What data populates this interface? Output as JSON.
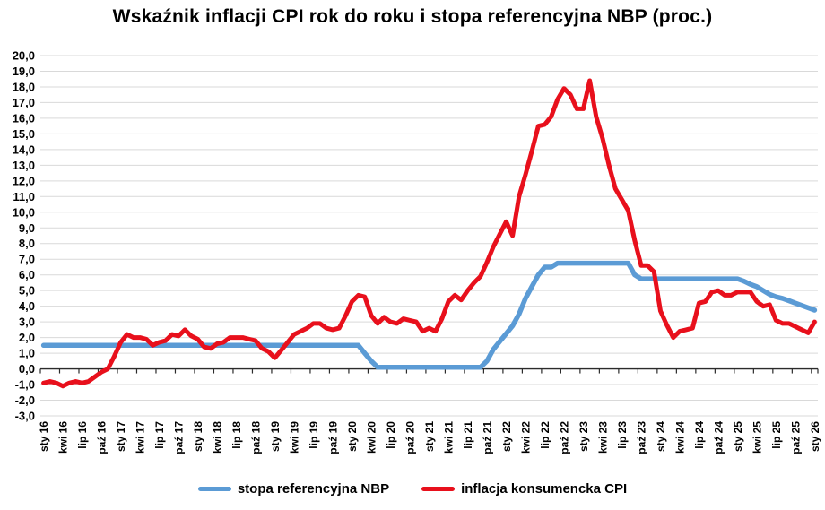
{
  "title": "Wskaźnik inflacji CPI rok do roku i stopa referencyjna NBP (proc.)",
  "legend": [
    {
      "label": "stopa referencyjna NBP",
      "color": "#5b9bd5"
    },
    {
      "label": "inflacja konsumencka CPI",
      "color": "#e8101c"
    }
  ],
  "chart_data": {
    "type": "line",
    "title": "Wskaźnik inflacji CPI rok do roku i stopa referencyjna NBP (proc.)",
    "frequency": "monthly",
    "x_start": "sty 16",
    "x_end": "sty 26",
    "ylim": [
      -3.0,
      20.0
    ],
    "y_tick_step": 1.0,
    "grid": "horizontal",
    "grid_color": "#d9d9d9",
    "axis_color": "#2b2b2b",
    "legend_position": "bottom",
    "y_tick_labels": [
      "20,0",
      "19,0",
      "18,0",
      "17,0",
      "16,0",
      "15,0",
      "14,0",
      "13,0",
      "12,0",
      "11,0",
      "10,0",
      "9,0",
      "8,0",
      "7,0",
      "6,0",
      "5,0",
      "4,0",
      "3,0",
      "2,0",
      "1,0",
      "0,0",
      "-1,0",
      "-2,0",
      "-3,0"
    ],
    "x_tick_labels": [
      "sty 16",
      "kwi 16",
      "lip 16",
      "paź 16",
      "sty 17",
      "kwi 17",
      "lip 17",
      "paź 17",
      "sty 18",
      "kwi 18",
      "lip 18",
      "paź 18",
      "sty 19",
      "kwi 19",
      "lip 19",
      "paź 19",
      "sty 20",
      "kwi 20",
      "lip 20",
      "paź 20",
      "sty 21",
      "kwi 21",
      "lip 21",
      "paź 21",
      "sty 22",
      "kwi 22",
      "lip 22",
      "paź 22",
      "sty 23",
      "kwi 23",
      "lip 23",
      "paź 23",
      "sty 24",
      "kwi 24",
      "lip 24",
      "paź 24",
      "sty 25",
      "kwi 25",
      "lip 25",
      "paź 25",
      "sty 26"
    ],
    "series": [
      {
        "name": "stopa referencyjna NBP",
        "color": "#5b9bd5",
        "line_width": 5.5,
        "values": [
          1.5,
          1.5,
          1.5,
          1.5,
          1.5,
          1.5,
          1.5,
          1.5,
          1.5,
          1.5,
          1.5,
          1.5,
          1.5,
          1.5,
          1.5,
          1.5,
          1.5,
          1.5,
          1.5,
          1.5,
          1.5,
          1.5,
          1.5,
          1.5,
          1.5,
          1.5,
          1.5,
          1.5,
          1.5,
          1.5,
          1.5,
          1.5,
          1.5,
          1.5,
          1.5,
          1.5,
          1.5,
          1.5,
          1.5,
          1.5,
          1.5,
          1.5,
          1.5,
          1.5,
          1.5,
          1.5,
          1.5,
          1.5,
          1.5,
          1.5,
          1.0,
          0.5,
          0.1,
          0.1,
          0.1,
          0.1,
          0.1,
          0.1,
          0.1,
          0.1,
          0.1,
          0.1,
          0.1,
          0.1,
          0.1,
          0.1,
          0.1,
          0.1,
          0.1,
          0.5,
          1.25,
          1.75,
          2.25,
          2.75,
          3.5,
          4.5,
          5.25,
          6.0,
          6.5,
          6.5,
          6.75,
          6.75,
          6.75,
          6.75,
          6.75,
          6.75,
          6.75,
          6.75,
          6.75,
          6.75,
          6.75,
          6.75,
          6.0,
          5.75,
          5.75,
          5.75,
          5.75,
          5.75,
          5.75,
          5.75,
          5.75,
          5.75,
          5.75,
          5.75,
          5.75,
          5.75,
          5.75,
          5.75,
          5.75,
          5.6,
          5.4,
          5.25,
          5.0,
          4.75,
          4.6,
          4.5,
          4.35,
          4.2,
          4.05,
          3.9,
          3.75
        ]
      },
      {
        "name": "inflacja konsumencka CPI",
        "color": "#e8101c",
        "line_width": 5,
        "values": [
          -0.9,
          -0.8,
          -0.9,
          -1.1,
          -0.9,
          -0.8,
          -0.9,
          -0.8,
          -0.5,
          -0.2,
          0.0,
          0.8,
          1.7,
          2.2,
          2.0,
          2.0,
          1.9,
          1.5,
          1.7,
          1.8,
          2.2,
          2.1,
          2.5,
          2.1,
          1.9,
          1.4,
          1.3,
          1.6,
          1.7,
          2.0,
          2.0,
          2.0,
          1.9,
          1.8,
          1.3,
          1.1,
          0.7,
          1.2,
          1.7,
          2.2,
          2.4,
          2.6,
          2.9,
          2.9,
          2.6,
          2.5,
          2.6,
          3.4,
          4.3,
          4.7,
          4.6,
          3.4,
          2.9,
          3.3,
          3.0,
          2.9,
          3.2,
          3.1,
          3.0,
          2.4,
          2.6,
          2.4,
          3.2,
          4.3,
          4.7,
          4.4,
          5.0,
          5.5,
          5.9,
          6.8,
          7.8,
          8.6,
          9.4,
          8.5,
          11.0,
          12.4,
          13.9,
          15.5,
          15.6,
          16.1,
          17.2,
          17.9,
          17.5,
          16.6,
          16.6,
          18.4,
          16.1,
          14.7,
          13.0,
          11.5,
          10.8,
          10.1,
          8.2,
          6.6,
          6.6,
          6.2,
          3.7,
          2.8,
          2.0,
          2.4,
          2.5,
          2.6,
          4.2,
          4.3,
          4.9,
          5.0,
          4.7,
          4.7,
          4.9,
          4.9,
          4.9,
          4.3,
          4.0,
          4.1,
          3.1,
          2.9,
          2.9,
          2.7,
          2.5,
          2.3,
          3.0
        ]
      }
    ]
  }
}
